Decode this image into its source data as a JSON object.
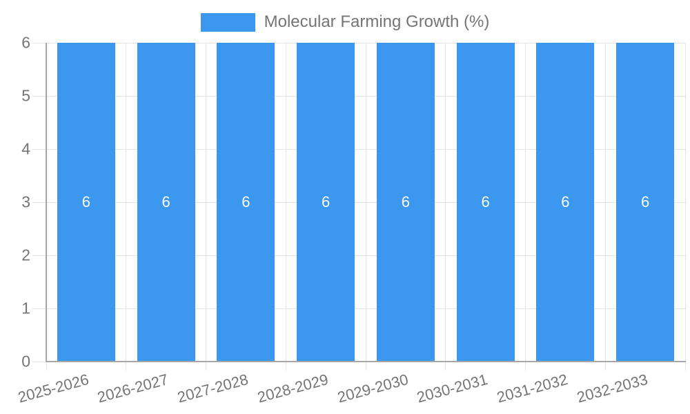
{
  "chart_data": {
    "type": "bar",
    "legend_label": "Molecular Farming Growth (%)",
    "legend_position": "top",
    "categories": [
      "2025-2026",
      "2026-2027",
      "2027-2028",
      "2028-2029",
      "2029-2030",
      "2030-2031",
      "2031-2032",
      "2032-2033"
    ],
    "values": [
      6,
      6,
      6,
      6,
      6,
      6,
      6,
      6
    ],
    "yticks": [
      0,
      1,
      2,
      3,
      4,
      5,
      6
    ],
    "ylim": [
      0,
      6
    ],
    "grid": true,
    "x_label_rotation_deg": -15,
    "colors": {
      "bar": "#3B98EE",
      "bar_value_label": "#FFFFFF",
      "gridline": "#E4E4E4",
      "axis_line": "#A6A6A6",
      "tick_text": "#757575",
      "background": "#FFFFFF"
    }
  }
}
